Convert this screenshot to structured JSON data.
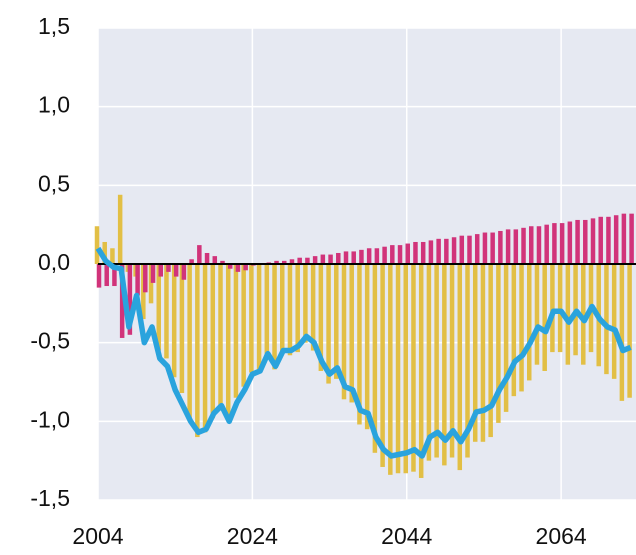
{
  "chart_data": {
    "type": "bar_line",
    "x": [
      2004,
      2005,
      2006,
      2007,
      2008,
      2009,
      2010,
      2011,
      2012,
      2013,
      2014,
      2015,
      2016,
      2017,
      2018,
      2019,
      2020,
      2021,
      2022,
      2023,
      2024,
      2025,
      2026,
      2027,
      2028,
      2029,
      2030,
      2031,
      2032,
      2033,
      2034,
      2035,
      2036,
      2037,
      2038,
      2039,
      2040,
      2041,
      2042,
      2043,
      2044,
      2045,
      2046,
      2047,
      2048,
      2049,
      2050,
      2051,
      2052,
      2053,
      2054,
      2055,
      2056,
      2057,
      2058,
      2059,
      2060,
      2061,
      2062,
      2063,
      2064,
      2065,
      2066,
      2067,
      2068,
      2069,
      2070,
      2071,
      2072,
      2073
    ],
    "series": [
      {
        "type": "bar",
        "color": "#e2bf45",
        "values": [
          0.24,
          0.14,
          0.1,
          0.44,
          -0.05,
          -0.08,
          -0.35,
          -0.25,
          -0.55,
          -0.6,
          -0.72,
          -0.82,
          -1.0,
          -1.1,
          -1.07,
          -0.98,
          -0.92,
          -0.98,
          -0.85,
          -0.78,
          -0.69,
          -0.68,
          -0.58,
          -0.67,
          -0.57,
          -0.58,
          -0.56,
          -0.5,
          -0.55,
          -0.68,
          -0.76,
          -0.73,
          -0.86,
          -0.88,
          -1.02,
          -1.05,
          -1.2,
          -1.29,
          -1.34,
          -1.33,
          -1.33,
          -1.32,
          -1.36,
          -1.25,
          -1.23,
          -1.28,
          -1.23,
          -1.31,
          -1.23,
          -1.13,
          -1.13,
          -1.1,
          -1.01,
          -0.94,
          -0.84,
          -0.81,
          -0.74,
          -0.64,
          -0.68,
          -0.56,
          -0.56,
          -0.64,
          -0.58,
          -0.64,
          -0.56,
          -0.65,
          -0.7,
          -0.73,
          -0.87,
          -0.85
        ]
      },
      {
        "type": "bar",
        "color": "#d1337a",
        "values": [
          -0.15,
          -0.14,
          -0.14,
          -0.47,
          -0.45,
          -0.2,
          -0.18,
          -0.12,
          -0.08,
          -0.05,
          -0.08,
          -0.1,
          0.03,
          0.12,
          0.07,
          0.05,
          0.02,
          -0.03,
          -0.05,
          -0.04,
          -0.01,
          0,
          0.01,
          0.02,
          0.02,
          0.03,
          0.04,
          0.04,
          0.05,
          0.06,
          0.06,
          0.07,
          0.08,
          0.08,
          0.09,
          0.1,
          0.1,
          0.11,
          0.12,
          0.12,
          0.13,
          0.14,
          0.14,
          0.15,
          0.16,
          0.16,
          0.17,
          0.18,
          0.18,
          0.19,
          0.2,
          0.2,
          0.21,
          0.22,
          0.22,
          0.23,
          0.24,
          0.24,
          0.25,
          0.26,
          0.26,
          0.27,
          0.28,
          0.28,
          0.29,
          0.3,
          0.3,
          0.31,
          0.32,
          0.32
        ]
      },
      {
        "type": "line",
        "color": "#2aa3dd",
        "values": [
          0.1,
          0.02,
          -0.02,
          -0.03,
          -0.4,
          -0.2,
          -0.5,
          -0.4,
          -0.6,
          -0.65,
          -0.8,
          -0.9,
          -1.0,
          -1.07,
          -1.05,
          -0.95,
          -0.9,
          -1.0,
          -0.88,
          -0.8,
          -0.7,
          -0.68,
          -0.57,
          -0.65,
          -0.55,
          -0.55,
          -0.52,
          -0.46,
          -0.5,
          -0.62,
          -0.7,
          -0.66,
          -0.78,
          -0.8,
          -0.93,
          -0.95,
          -1.1,
          -1.18,
          -1.22,
          -1.21,
          -1.2,
          -1.18,
          -1.22,
          -1.1,
          -1.07,
          -1.12,
          -1.06,
          -1.13,
          -1.05,
          -0.94,
          -0.93,
          -0.9,
          -0.8,
          -0.72,
          -0.62,
          -0.58,
          -0.5,
          -0.4,
          -0.43,
          -0.3,
          -0.3,
          -0.37,
          -0.3,
          -0.36,
          -0.27,
          -0.35,
          -0.4,
          -0.42,
          -0.55,
          -0.53
        ]
      }
    ],
    "xlim": [
      2004,
      2073.7
    ],
    "xticks": [
      2004,
      2024,
      2044,
      2064
    ],
    "ylim": [
      -1.5,
      1.5
    ],
    "yticks": [
      {
        "value": -1.5,
        "label": "-1,5"
      },
      {
        "value": -1.0,
        "label": "-1,0"
      },
      {
        "value": -0.5,
        "label": "-0,5"
      },
      {
        "value": 0,
        "label": "0,0"
      },
      {
        "value": 0.5,
        "label": "0,5"
      },
      {
        "value": 1.0,
        "label": "1,0"
      },
      {
        "value": 1.5,
        "label": "1,5"
      }
    ],
    "grid": true,
    "zero_line": true
  }
}
